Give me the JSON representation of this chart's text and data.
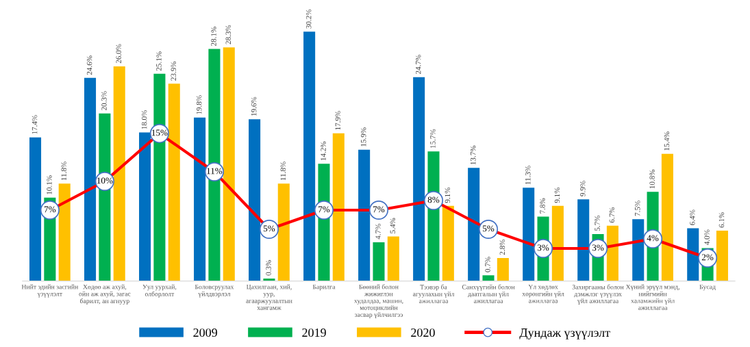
{
  "chart_data": {
    "type": "bar",
    "categories": [
      "Нийт эдийн засгийн\nүзүүлэлт",
      "Хөдөө аж ахуй,\nойн аж ахуй, загас\nбарилт, ан агнуур",
      "Уул уурхай,\nолборлолт",
      "Боловсруулах\nүйлдвэрлэл",
      "Цахилгаан, хий,\nуур,\nагааржуулалтын\nхангамж",
      "Барилга",
      "Бөөний болон\nжижиглэн\nхудалдаа, машин,\nмотоциклийн\nзасвар үйлчилгээ",
      "Тээвэр ба\nагуулахын үйл\nажиллагаа",
      "Санхүүгийн болон\nдаатгалын үйл\nажиллагаа",
      "Үл хөдлөх\nхөрөнгийн үйл\nажиллагаа",
      "Захиргааны болон\nдэмжлэг үзүүлэх\nүйл ажиллагаа",
      "Хүний эрүүл мэнд,\nнийгмийн\nхаламжийн үйл\nажиллагаа",
      "Бусад"
    ],
    "series": [
      {
        "name": "2009",
        "color": "#0070c0",
        "values": [
          17.4,
          24.6,
          18.0,
          19.8,
          19.6,
          30.2,
          15.9,
          24.7,
          13.7,
          11.3,
          9.9,
          7.5,
          6.4
        ],
        "value_labels": [
          "17.4%",
          "24.6%",
          "18.0%",
          "19.8%",
          "19.6%",
          "30.2%",
          "15.9%",
          "24.7%",
          "13.7%",
          "11.3%",
          "9.9%",
          "7.5%",
          "6.4%"
        ]
      },
      {
        "name": "2019",
        "color": "#00b050",
        "values": [
          10.1,
          20.3,
          25.1,
          28.1,
          0.3,
          14.2,
          4.7,
          15.7,
          0.7,
          7.8,
          5.7,
          10.8,
          4.0
        ],
        "value_labels": [
          "10.1%",
          "20.3%",
          "25.1%",
          "28.1%",
          "0.3%",
          "14.2%",
          "4.7%",
          "15.7%",
          "0.7%",
          "7.8%",
          "5.7%",
          "10.8%",
          "4.0%"
        ]
      },
      {
        "name": "2020",
        "color": "#ffc000",
        "values": [
          11.8,
          26.0,
          23.9,
          28.3,
          11.8,
          17.9,
          5.4,
          9.1,
          2.8,
          9.1,
          6.7,
          15.4,
          6.1
        ],
        "value_labels": [
          "11.8%",
          "26.0%",
          "23.9%",
          "28.3%",
          "11.8%",
          "17.9%",
          "5.4%",
          "9.1%",
          "2.8%",
          "9.1%",
          "6.7%",
          "15.4%",
          "6.1%"
        ]
      },
      {
        "name": "Дундаж үзүүлэлт",
        "type": "line",
        "axis": "y2",
        "marker": "circle",
        "color": "#ff0000",
        "values": [
          7,
          10,
          15,
          11,
          5,
          7,
          7,
          8,
          5,
          3,
          3,
          4,
          2
        ],
        "value_labels": [
          "7%",
          "10%",
          "15%",
          "11%",
          "5%",
          "7%",
          "7%",
          "8%",
          "5%",
          "3%",
          "3%",
          "4%",
          "2%"
        ]
      }
    ],
    "tick_labels": "x",
    "grid": false,
    "legend": "bottom"
  }
}
